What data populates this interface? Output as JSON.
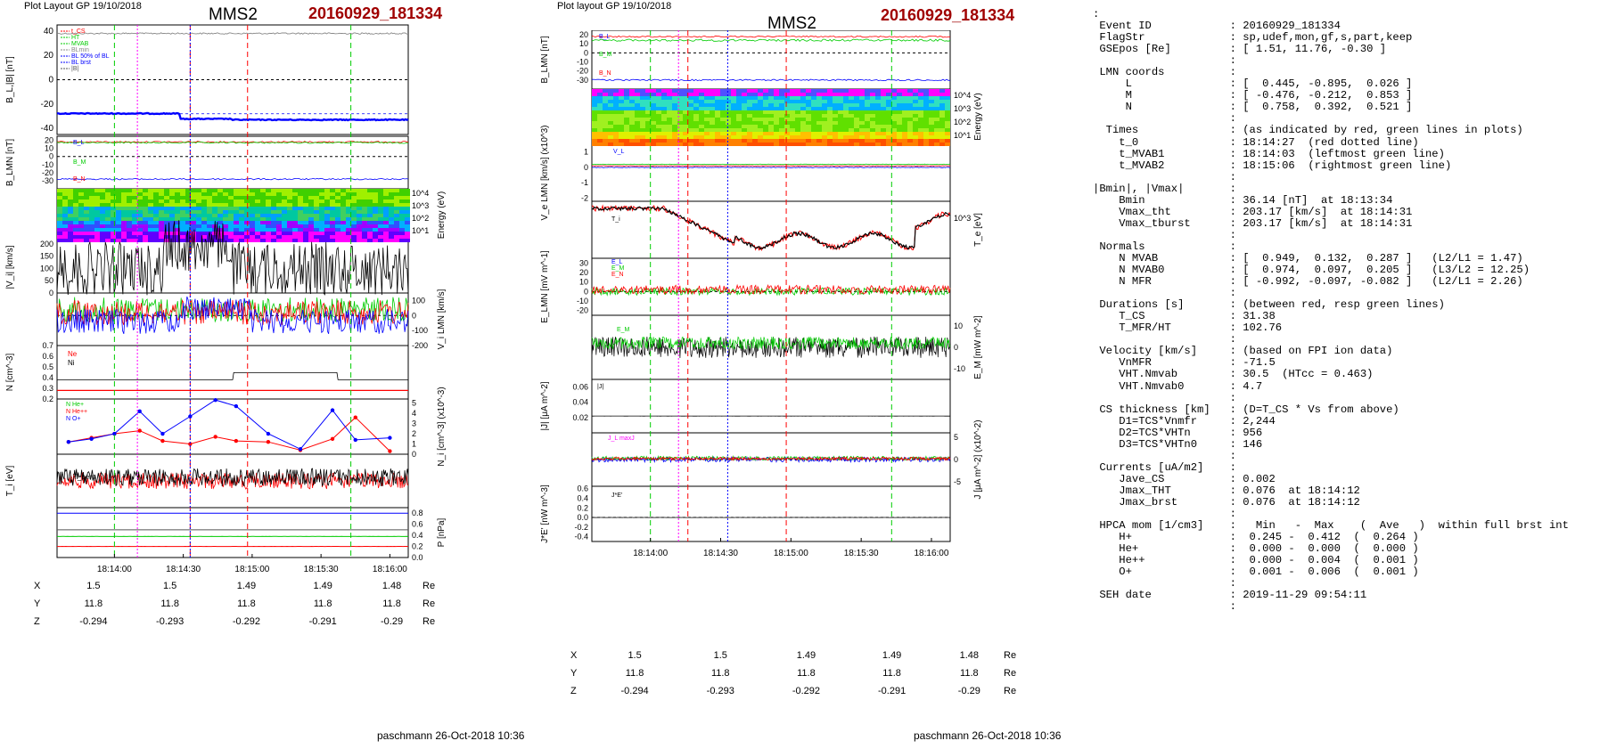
{
  "left": {
    "layout_label": "Plot Layout GP 19/10/2018",
    "spacecraft": "MMS2",
    "event_id": "20160929_181334",
    "signature": "paschmann 26-Oct-2018 10:36",
    "time_ticks": [
      "18:14:00",
      "18:14:30",
      "18:15:00",
      "18:15:30",
      "18:16:00"
    ]
  },
  "right": {
    "layout_label": "Plot layout GP 19/10/2018",
    "spacecraft": "MMS2",
    "event_id": "20160929_181334",
    "signature": "paschmann 26-Oct-2018 10:36",
    "time_ticks": [
      "18:14:00",
      "18:14:30",
      "18:15:00",
      "18:15:30",
      "18:16:00"
    ]
  },
  "position_table": {
    "rows": [
      {
        "label": "X",
        "values": [
          "1.5",
          "1.5",
          "1.49",
          "1.49",
          "1.48"
        ],
        "unit": "Re"
      },
      {
        "label": "Y",
        "values": [
          "11.8",
          "11.8",
          "11.8",
          "11.8",
          "11.8"
        ],
        "unit": "Re"
      },
      {
        "label": "Z",
        "values": [
          "-0.294",
          "-0.293",
          "-0.292",
          "-0.291",
          "-0.29"
        ],
        "unit": "Re"
      }
    ]
  },
  "summary_lines": [
    ":",
    " Event ID            : 20160929_181334",
    " FlagStr             : sp,udef,mon,gf,s,part,keep",
    " GSEpos [Re]         : [ 1.51, 11.76, -0.30 ]",
    "                     :",
    " LMN coords          :",
    "     L               : [  0.445, -0.895,  0.026 ]",
    "     M               : [ -0.476, -0.212,  0.853 ]",
    "     N               : [  0.758,  0.392,  0.521 ]",
    "                     :",
    "  Times              : (as indicated by red, green lines in plots)",
    "    t_0              : 18:14:27  (red dotted line)",
    "    t_MVAB1          : 18:14:03  (leftmost green line)",
    "    t_MVAB2          : 18:15:06  (rightmost green line)",
    "                     :",
    "|Bmin|, |Vmax|       :",
    "    Bmin             : 36.14 [nT]  at 18:13:34",
    "    Vmax_tht         : 203.17 [km/s]  at 18:14:31",
    "    Vmax_tburst      : 203.17 [km/s]  at 18:14:31",
    "                     :",
    " Normals             :",
    "    N MVAB           : [  0.949,  0.132,  0.287 ]   (L2/L1 = 1.47)",
    "    N MVAB0          : [  0.974,  0.097,  0.205 ]   (L3/L2 = 12.25)",
    "    N MFR            : [ -0.992, -0.097, -0.082 ]   (L2/L1 = 2.26)",
    "                     :",
    " Durations [s]       : (between red, resp green lines)",
    "    T_CS             : 31.38",
    "    T_MFR/HT         : 102.76",
    "                     :",
    " Velocity [km/s]     : (based on FPI ion data)",
    "    VnMFR            : -71.5",
    "    VHT.Nmvab        : 30.5  (HTcc = 0.463)",
    "    VHT.Nmvab0       : 4.7",
    "                     :",
    " CS thickness [km]   : (D=T_CS * Vs from above)",
    "    D1=TCS*Vnmfr     : 2,244",
    "    D2=TCS*VHTn      : 956",
    "    D3=TCS*VHTn0     : 146",
    "                     :",
    " Currents [uA/m2]    :",
    "    Jave_CS          : 0.002",
    "    Jmax_THT         : 0.076  at 18:14:12",
    "    Jmax_brst        : 0.076  at 18:14:12",
    "                     :",
    " HPCA mom [1/cm3]    :   Min   -  Max    (  Ave   )  within full brst int",
    "    H+               :  0.245 -  0.412  (  0.264 )",
    "    He+              :  0.000 -  0.000  (  0.000 )",
    "    He++             :  0.000 -  0.004  (  0.001 )",
    "    O+               :  0.001 -  0.006  (  0.001 )",
    "                     :",
    " SEH date            : 2019-11-29 09:54:11",
    "                     :"
  ],
  "colors": {
    "event_red": "#a00000",
    "red": "#ff0000",
    "green": "#00cc00",
    "blue": "#0000ff",
    "magenta": "#ff00ff",
    "black": "#000000"
  },
  "chart_data": [
    {
      "type": "line",
      "title": "MMS2 20160929_181334 (left figure)",
      "x": {
        "unit": "UT",
        "range": [
          "18:13:35",
          "18:16:08"
        ],
        "ticks": [
          "18:14:00",
          "18:14:30",
          "18:15:00",
          "18:15:30",
          "18:16:00"
        ]
      },
      "panels": [
        {
          "name": "B_L, |B|",
          "ylabel": "B_L,|B| [nT]",
          "ylim": [
            -45,
            45
          ],
          "yticks": [
            -40,
            -20,
            0,
            20,
            40
          ],
          "legend": [
            "t_CS",
            "HT",
            "MVAB",
            "BLmin",
            "BL 50% of BL",
            "BL brst",
            "|B|"
          ],
          "series": [
            {
              "name": "|B|",
              "approx": 38
            },
            {
              "name": "BL",
              "approx": -30
            }
          ]
        },
        {
          "name": "B_LMN",
          "ylabel": "B_LMN [nT]",
          "ylim": [
            -40,
            25
          ],
          "yticks": [
            -30,
            -20,
            -10,
            0,
            10,
            20
          ],
          "legend": [
            "B_L",
            "B_M",
            "B_N"
          ],
          "series": [
            {
              "name": "B_L",
              "approx": 18
            },
            {
              "name": "B_M",
              "approx": 2
            },
            {
              "name": "B_N",
              "approx": -28
            }
          ]
        },
        {
          "name": "Ion energy spectrogram",
          "ylabel": "Energy (eV)",
          "yticks": [
            "10^1",
            "10^2",
            "10^3",
            "10^4"
          ],
          "type": "heatmap"
        },
        {
          "name": "|V_i|",
          "ylabel": "|V_i| [km/s]",
          "ylim": [
            0,
            200
          ],
          "yticks": [
            0,
            50,
            100,
            150,
            200
          ],
          "legend": [
            "HT",
            "Vmax",
            "V_1"
          ],
          "series": [
            {
              "name": "|Vi|",
              "approx": 100
            }
          ]
        },
        {
          "name": "V_i LMN",
          "ylabel": "V_i LMN [km/s]",
          "ylim": [
            -200,
            150
          ],
          "yticks": [
            -200,
            -100,
            0,
            100
          ],
          "legend": [
            "V_L",
            "V_M",
            "V_N"
          ],
          "series": [
            {
              "name": "V_L",
              "approx": 40
            },
            {
              "name": "V_M",
              "approx": 20
            },
            {
              "name": "V_N",
              "approx": -40
            }
          ]
        },
        {
          "name": "N",
          "ylabel": "N [cm^-3]",
          "ylim": [
            0.2,
            0.7
          ],
          "yticks": [
            0.2,
            0.3,
            0.4,
            0.5,
            0.6,
            0.7
          ],
          "legend": [
            "Ne",
            "Ni"
          ],
          "series": [
            {
              "name": "Ne",
              "approx": 0.27
            },
            {
              "name": "Ni",
              "approx": 0.36
            }
          ]
        },
        {
          "name": "N_i HPCA",
          "ylabel": "N_i [cm^-3] (x10^-3)",
          "ylim": [
            0,
            5
          ],
          "yticks": [
            0,
            1,
            2,
            3,
            4,
            5
          ],
          "legend": [
            "N He+",
            "N He++",
            "N O+"
          ],
          "series": [
            {
              "name": "N He++",
              "x_s": [
                5,
                15,
                25,
                36,
                46,
                58,
                69,
                78,
                92,
                106,
                120,
                130,
                145
              ],
              "values": [
                1.2,
                1.6,
                2.0,
                2.3,
                1.3,
                1.0,
                1.7,
                1.3,
                1.2,
                0.4,
                1.5,
                3.6,
                0.3
              ]
            },
            {
              "name": "N O+",
              "x_s": [
                5,
                15,
                25,
                36,
                46,
                58,
                69,
                78,
                92,
                106,
                120,
                130,
                145
              ],
              "values": [
                1.2,
                1.5,
                2.0,
                4.2,
                2.0,
                3.7,
                5.3,
                4.7,
                2.0,
                0.5,
                4.3,
                1.4,
                1.6
              ]
            }
          ]
        },
        {
          "name": "T_i",
          "ylabel": "T_i [eV]",
          "legend": [
            "T_perp"
          ],
          "series": [
            {
              "name": "T",
              "approx": "noisy"
            }
          ]
        },
        {
          "name": "P",
          "ylabel": "P [nPa]",
          "ylim": [
            0,
            0.9
          ],
          "yticks": [
            0,
            0.2,
            0.4,
            0.6,
            0.8
          ],
          "legend": [
            "P_B",
            "P_i",
            "P_e",
            "P_tot"
          ],
          "series": [
            {
              "name": "P_tot",
              "approx": 0.8
            },
            {
              "name": "P_i",
              "approx": 0.5
            },
            {
              "name": "P_B",
              "approx": 0.38
            },
            {
              "name": "P_e",
              "approx": 0.08
            }
          ]
        }
      ],
      "markers": {
        "red_dashed": [
          "18:14:12",
          "18:14:45"
        ],
        "green_dashed": [
          "18:14:03",
          "18:15:06"
        ],
        "magenta_dotted": [
          "18:14:08"
        ],
        "blue_dotted": [
          "18:14:27"
        ]
      }
    },
    {
      "type": "line",
      "title": "MMS2 20160929_181334 (right figure)",
      "x": {
        "unit": "UT",
        "range": [
          "18:13:35",
          "18:16:08"
        ],
        "ticks": [
          "18:14:00",
          "18:14:30",
          "18:15:00",
          "18:15:30",
          "18:16:00"
        ]
      },
      "panels": [
        {
          "name": "B_LMN",
          "ylabel": "B_LMN [nT]",
          "ylim": [
            -40,
            25
          ],
          "yticks": [
            -30,
            -20,
            -10,
            0,
            10,
            20
          ],
          "legend": [
            "B_L",
            "B_M",
            "B_N"
          ]
        },
        {
          "name": "Electron energy spectrogram",
          "ylabel": "Energy (eV)",
          "yticks": [
            "10^1",
            "10^2",
            "10^3",
            "10^4"
          ],
          "type": "heatmap"
        },
        {
          "name": "V_e LMN",
          "ylabel": "V_e LMN [km/s] (x10^3)",
          "ylim": [
            -2,
            1.5
          ],
          "yticks": [
            -2,
            -1,
            0,
            1
          ],
          "legend": [
            "V_L"
          ]
        },
        {
          "name": "T_e",
          "ylabel": "T_e [eV]",
          "yticks": [
            "10^3"
          ],
          "legend": [
            "T_i"
          ]
        },
        {
          "name": "E_LMN",
          "ylabel": "E_LMN [mV m^-1]",
          "ylim": [
            -25,
            35
          ],
          "yticks": [
            -20,
            -10,
            0,
            10,
            20,
            30
          ],
          "legend": [
            "E_L",
            "E_M",
            "E_N"
          ]
        },
        {
          "name": "E_M",
          "ylabel": "E_M [mW m^-2]",
          "ylim": [
            -15,
            15
          ],
          "yticks": [
            -10,
            0,
            10
          ],
          "legend": [
            "E_M"
          ]
        },
        {
          "name": "|J|",
          "ylabel": "|J| [μA m^-2]",
          "ylim": [
            0,
            0.07
          ],
          "yticks": [
            0.02,
            0.04,
            0.06
          ],
          "legend": [
            "|J|"
          ]
        },
        {
          "name": "J",
          "ylabel": "J [μA m^-2] (x10^-2)",
          "ylim": [
            -6,
            6
          ],
          "yticks": [
            -5,
            0,
            5
          ],
          "legend": [
            "J_L maxJ"
          ]
        },
        {
          "name": "J*E'",
          "ylabel": "J*E' [nW m^-3]",
          "ylim": [
            -0.5,
            0.65
          ],
          "yticks": [
            -0.4,
            -0.2,
            0,
            0.2,
            0.4,
            0.6
          ],
          "legend": [
            "J*E'"
          ]
        }
      ]
    }
  ]
}
